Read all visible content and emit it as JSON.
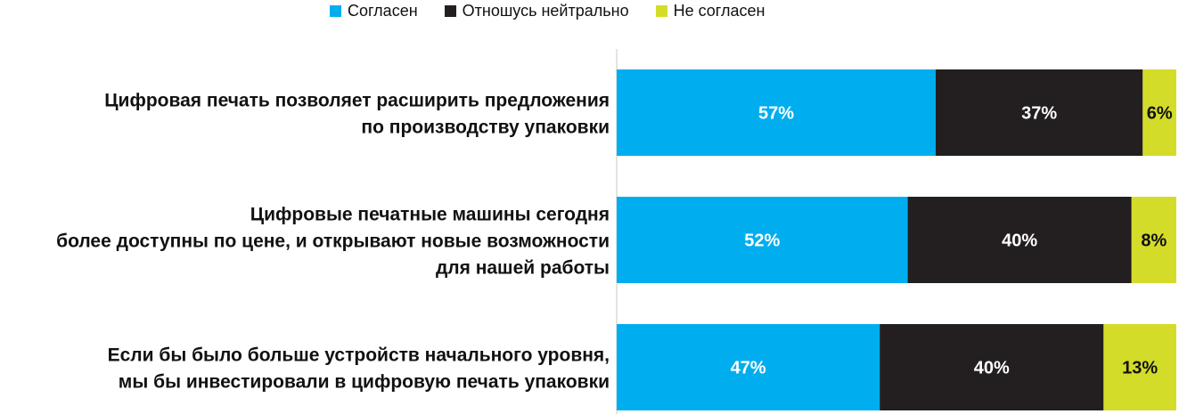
{
  "chart_data": {
    "type": "bar",
    "orientation": "horizontal",
    "stacked": true,
    "normalized_percent": true,
    "categories": [
      [
        "Цифровая печать позволяет расширить предложения",
        "по производству упаковки"
      ],
      [
        "Цифровые печатные машины сегодня",
        "более доступны по цене, и открывают новые возможности",
        "для нашей работы"
      ],
      [
        "Если бы было больше устройств начального уровня,",
        "мы бы инвестировали в цифровую печать упаковки"
      ]
    ],
    "series": [
      {
        "name": "Согласен",
        "color": "#00AEEF",
        "values": [
          57,
          52,
          47
        ],
        "labels": [
          "57%",
          "52%",
          "47%"
        ]
      },
      {
        "name": "Отношусь нейтрально",
        "color": "#231F20",
        "values": [
          37,
          40,
          40
        ],
        "labels": [
          "37%",
          "40%",
          "40%"
        ]
      },
      {
        "name": "Не согласен",
        "color": "#D4DC2A",
        "values": [
          6,
          8,
          13
        ],
        "labels": [
          "6%",
          "8%",
          "13%"
        ]
      }
    ],
    "xlim": [
      0,
      100
    ],
    "grid": false,
    "legend_position": "top"
  }
}
